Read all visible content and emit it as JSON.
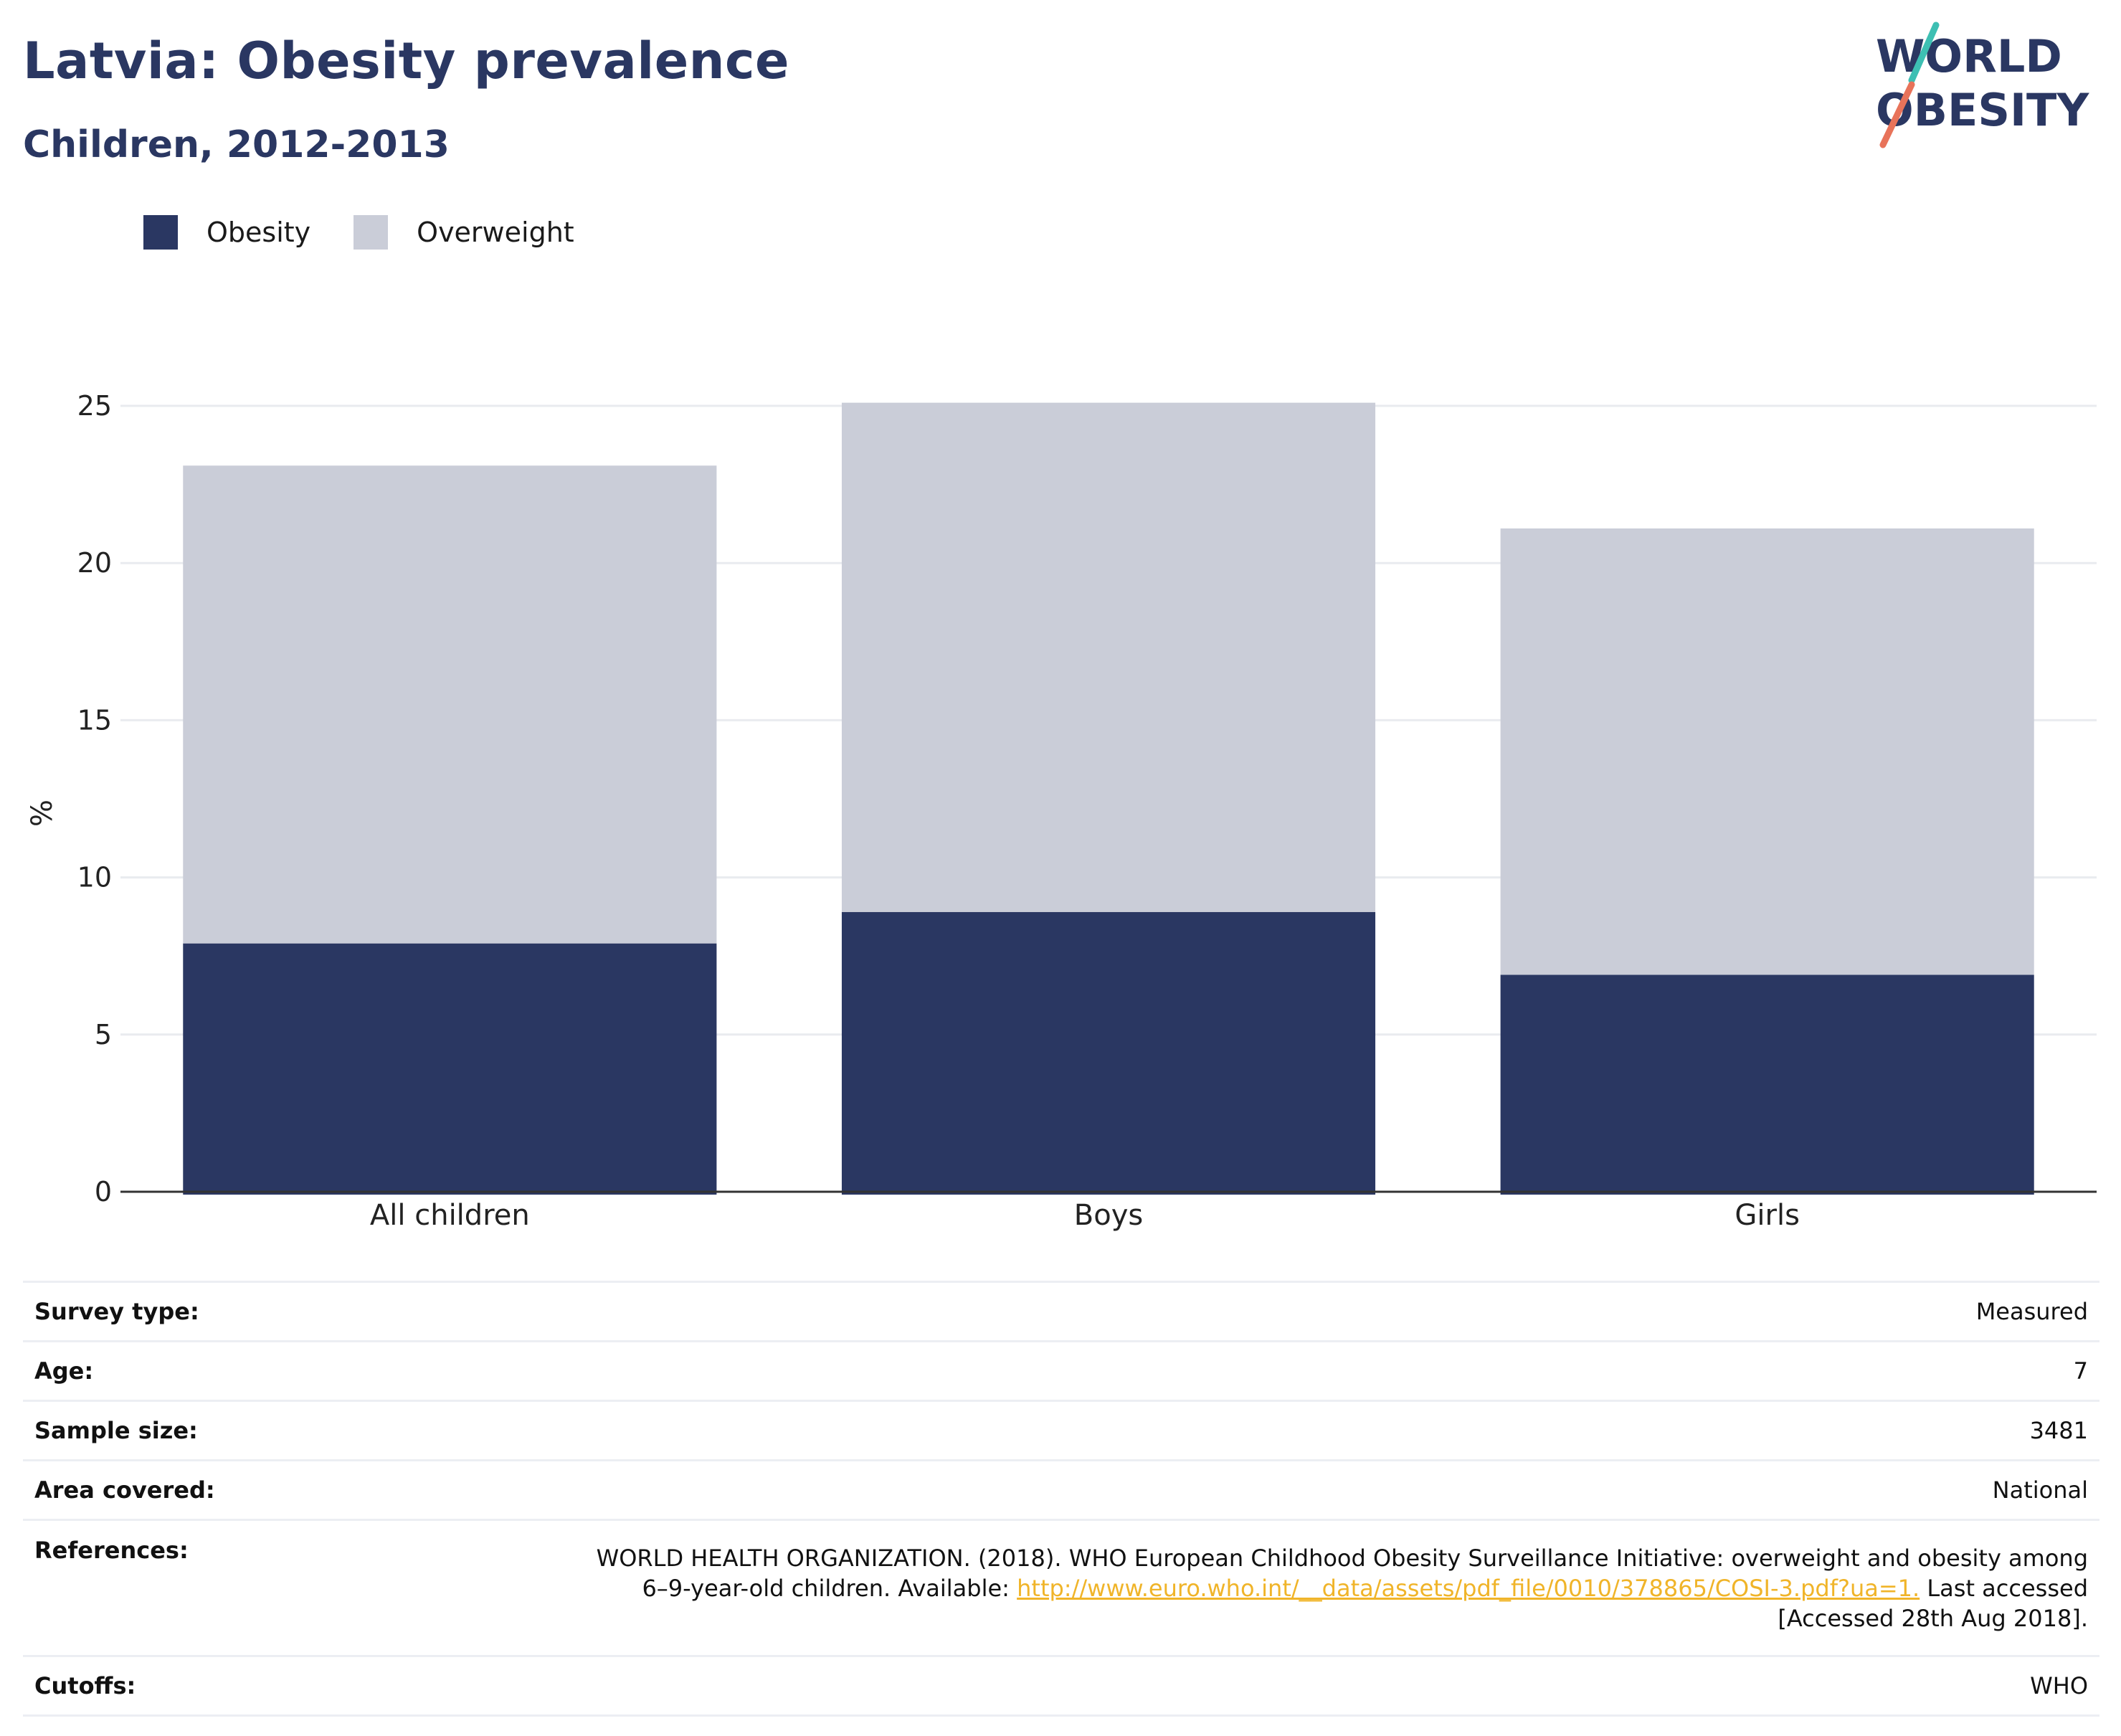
{
  "header": {
    "title": "Latvia: Obesity prevalence",
    "subtitle": "Children, 2012-2013"
  },
  "logo": {
    "line1": "WORLD",
    "line2": "OBESITY",
    "slash_colors": [
      "#3dbfb3",
      "#e8735a"
    ]
  },
  "colors": {
    "obesity": "#2a3762",
    "overweight": "#cacdd8",
    "axis": "#333333",
    "grid": "#e9ebef",
    "link": "#f0b429"
  },
  "legend": [
    {
      "label": "Obesity",
      "color": "#2a3762"
    },
    {
      "label": "Overweight",
      "color": "#cacdd8"
    }
  ],
  "chart_data": {
    "type": "bar",
    "stacked": true,
    "categories": [
      "All children",
      "Boys",
      "Girls"
    ],
    "series": [
      {
        "name": "Obesity",
        "values": [
          7.9,
          8.9,
          6.9
        ]
      },
      {
        "name": "Overweight",
        "values": [
          15.2,
          16.2,
          14.2
        ]
      }
    ],
    "ylabel": "%",
    "ylim": [
      0,
      25
    ],
    "yticks": [
      0,
      5,
      10,
      15,
      20,
      25
    ],
    "grid": true,
    "legend_position": "top-left"
  },
  "info": {
    "survey_type": {
      "label": "Survey type:",
      "value": "Measured"
    },
    "age": {
      "label": "Age:",
      "value": "7"
    },
    "sample_size": {
      "label": "Sample size:",
      "value": "3481"
    },
    "area": {
      "label": "Area covered:",
      "value": "National"
    },
    "references": {
      "label": "References:",
      "line1": "WORLD HEALTH ORGANIZATION. (2018). WHO European Childhood Obesity Surveillance Initiative: overweight and obesity among",
      "line2_prefix": "6–9-year-old children. Available: ",
      "link": "http://www.euro.who.int/__data/assets/pdf_file/0010/378865/COSI-3.pdf?ua=1.",
      "line2_suffix": " Last accessed",
      "line3": "[Accessed 28th Aug 2018]."
    },
    "cutoffs": {
      "label": "Cutoffs:",
      "value": "WHO"
    }
  }
}
